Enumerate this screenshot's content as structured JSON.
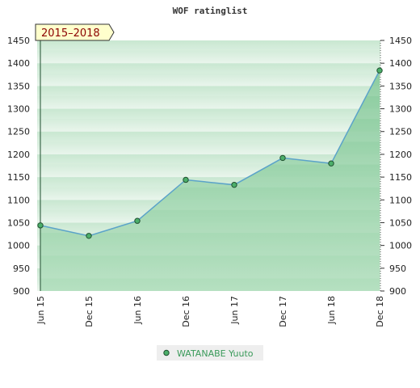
{
  "colors": {
    "series_line": "#5ba3c9",
    "marker_fill": "#4caf6a",
    "marker_stroke": "#1f4f2f",
    "band_light": "#e9f5ec",
    "band_dark": "#c3e5cc",
    "area_light": "#a9dbb6",
    "area_dark": "#79c490",
    "period_box_fill": "#ffffcc",
    "legend_bg": "#eeeeee",
    "legend_text": "#3a9a5a"
  },
  "chart_data": {
    "type": "area",
    "title": "WOF ratinglist",
    "period_label": "2015–2018",
    "categories": [
      "Jun 15",
      "Dec 15",
      "Jun 16",
      "Dec 16",
      "Jun 17",
      "Dec 17",
      "Jun 18",
      "Dec 18"
    ],
    "series": [
      {
        "name": "WATANABE Yuuto",
        "values": [
          1044,
          1021,
          1054,
          1144,
          1133,
          1192,
          1180,
          1384
        ]
      }
    ],
    "y_ticks": [
      900,
      950,
      1000,
      1050,
      1100,
      1150,
      1200,
      1250,
      1300,
      1350,
      1400,
      1450
    ],
    "ylim": [
      900,
      1450
    ],
    "y_axis_right": true,
    "legend_position": "bottom-center",
    "grid": "horizontal bands"
  }
}
